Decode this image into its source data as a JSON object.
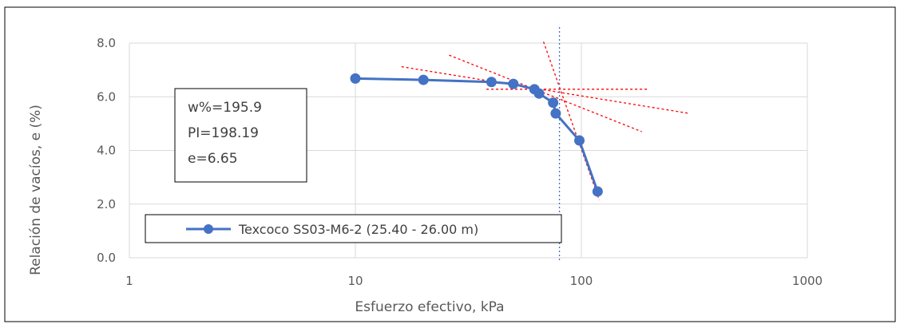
{
  "chart_data": {
    "type": "scatter",
    "x_scale": "log",
    "xlim": [
      1,
      1000
    ],
    "ylim": [
      0,
      8
    ],
    "xticks": [
      "1",
      "10",
      "100",
      "1000"
    ],
    "yticks": [
      "0.0",
      "2.0",
      "4.0",
      "6.0",
      "8.0"
    ],
    "xlabel": "Esfuerzo efectivo, kPa",
    "ylabel": "Relación de vacíos, e (%)",
    "grid": {
      "vertical": true,
      "horizontal": true
    },
    "legend_position": "bottom-left",
    "series": [
      {
        "name": "Texcoco SS03-M6-2 (25.40 - 26.00 m)",
        "color": "#4472C4",
        "marker": "circle",
        "x": [
          10,
          20,
          40,
          50,
          62,
          65,
          75,
          77,
          98,
          118
        ],
        "y": [
          6.68,
          6.63,
          6.55,
          6.48,
          6.28,
          6.12,
          5.78,
          5.38,
          4.37,
          2.47
        ]
      }
    ],
    "annotation": {
      "lines": [
        "w%=195.9",
        "PI=198.19",
        "e=6.65"
      ]
    },
    "casagrande_construction": {
      "color": "#FF0000",
      "lines": [
        {
          "x": [
            16,
            300
          ],
          "y": [
            7.12,
            5.38
          ]
        },
        {
          "x": [
            26,
            185
          ],
          "y": [
            7.55,
            4.7
          ]
        },
        {
          "x": [
            68,
            120
          ],
          "y": [
            8.05,
            2.15
          ]
        },
        {
          "x": [
            38,
            195
          ],
          "y": [
            6.28,
            6.28
          ]
        }
      ],
      "preconsolidation_x": 80,
      "preconsolidation_color": "#4472C4"
    }
  }
}
